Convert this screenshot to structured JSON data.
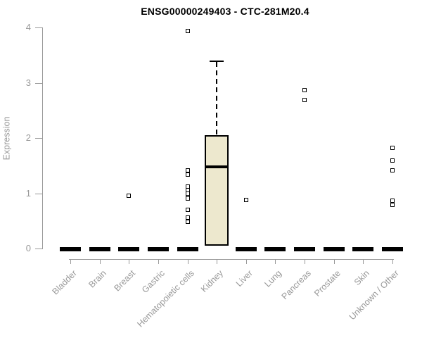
{
  "chart_data": {
    "type": "boxplot",
    "title": "ENSG00000249403 - CTC-281M20.4",
    "ylabel": "Expression",
    "xlabel": "",
    "ylim": [
      0,
      4
    ],
    "yticks": [
      0,
      1,
      2,
      3,
      4
    ],
    "grid": false,
    "legend": "none",
    "categories": [
      "Bladder",
      "Brain",
      "Breast",
      "Gastric",
      "Hematopoietic cells",
      "Kidney",
      "Liver",
      "Lung",
      "Pancreas",
      "Prostate",
      "Skin",
      "Unknown / Other"
    ],
    "boxes": [
      {
        "category": "Bladder",
        "q1": 0,
        "median": 0,
        "q3": 0,
        "whisker_low": 0,
        "whisker_high": 0,
        "outliers": []
      },
      {
        "category": "Brain",
        "q1": 0,
        "median": 0,
        "q3": 0,
        "whisker_low": 0,
        "whisker_high": 0,
        "outliers": []
      },
      {
        "category": "Breast",
        "q1": 0,
        "median": 0,
        "q3": 0,
        "whisker_low": 0,
        "whisker_high": 0,
        "outliers": [
          0.96
        ]
      },
      {
        "category": "Gastric",
        "q1": 0,
        "median": 0,
        "q3": 0,
        "whisker_low": 0,
        "whisker_high": 0,
        "outliers": []
      },
      {
        "category": "Hematopoietic cells",
        "q1": 0,
        "median": 0,
        "q3": 0,
        "whisker_low": 0,
        "whisker_high": 0,
        "outliers": [
          3.93,
          1.41,
          1.34,
          1.12,
          1.06,
          0.99,
          0.93,
          0.9,
          0.7,
          0.56,
          0.48
        ]
      },
      {
        "category": "Kidney",
        "q1": 0.05,
        "median": 1.48,
        "q3": 2.05,
        "whisker_low": 0.05,
        "whisker_high": 3.38,
        "outliers": []
      },
      {
        "category": "Liver",
        "q1": 0,
        "median": 0,
        "q3": 0,
        "whisker_low": 0,
        "whisker_high": 0,
        "outliers": [
          0.88
        ]
      },
      {
        "category": "Lung",
        "q1": 0,
        "median": 0,
        "q3": 0,
        "whisker_low": 0,
        "whisker_high": 0,
        "outliers": []
      },
      {
        "category": "Pancreas",
        "q1": 0,
        "median": 0,
        "q3": 0,
        "whisker_low": 0,
        "whisker_high": 0,
        "outliers": [
          2.87,
          2.69
        ]
      },
      {
        "category": "Prostate",
        "q1": 0,
        "median": 0,
        "q3": 0,
        "whisker_low": 0,
        "whisker_high": 0,
        "outliers": []
      },
      {
        "category": "Skin",
        "q1": 0,
        "median": 0,
        "q3": 0,
        "whisker_low": 0,
        "whisker_high": 0,
        "outliers": []
      },
      {
        "category": "Unknown / Other",
        "q1": 0,
        "median": 0,
        "q3": 0,
        "whisker_low": 0,
        "whisker_high": 0,
        "outliers": [
          1.82,
          1.59,
          1.41,
          0.87,
          0.79
        ]
      }
    ],
    "colors": {
      "box_fill": "#EDE8CE",
      "box_border": "#000000",
      "axis": "#999999",
      "tick_label": "#999999",
      "title": "#000000",
      "background": "#ffffff"
    }
  }
}
